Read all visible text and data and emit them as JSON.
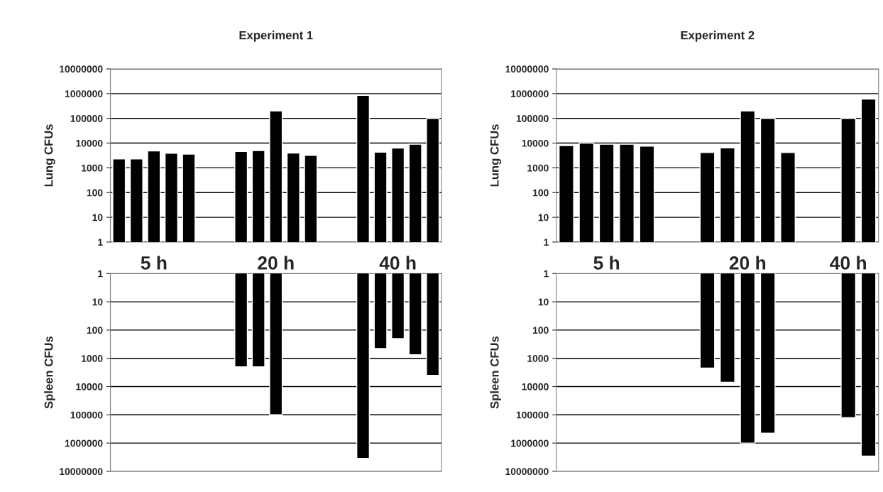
{
  "chart_data": [
    {
      "type": "bar",
      "title": "Experiment 1",
      "ylabel": "Lung CFUs",
      "log": "y",
      "grid": "y",
      "tick_labels": "xy",
      "categories": [
        null,
        null,
        "5 h",
        null,
        null,
        null,
        null,
        null,
        null,
        "20 h",
        null,
        null,
        null,
        null,
        null,
        null,
        "40 h",
        null,
        null
      ],
      "series": [
        {
          "color": "#000000",
          "values": [
            2300,
            2300,
            4800,
            3900,
            3600,
            null,
            null,
            4600,
            5000,
            200000,
            4000,
            3200,
            null,
            null,
            850000,
            4300,
            6300,
            9000,
            100000
          ]
        }
      ],
      "ylim": [
        1,
        10000000
      ],
      "yticks": [
        1,
        10,
        100,
        1000,
        10000,
        100000,
        1000000,
        10000000
      ]
    },
    {
      "type": "bar",
      "ylabel": "Spleen CFUs",
      "log": "y",
      "grid": "y",
      "tick_labels": "y",
      "categories": [
        null,
        null,
        null,
        null,
        null,
        null,
        null,
        null,
        null,
        null,
        null,
        null,
        null,
        null,
        null,
        null,
        null,
        null,
        null
      ],
      "series": [
        {
          "color": "#000000",
          "values": [
            null,
            null,
            null,
            null,
            null,
            null,
            null,
            2000,
            2000,
            100000,
            null,
            null,
            null,
            null,
            3500000,
            450,
            200,
            750,
            4000
          ]
        }
      ],
      "ylim": [
        10000000,
        1
      ],
      "yticks": [
        1,
        10,
        100,
        1000,
        10000,
        100000,
        1000000,
        10000000
      ]
    },
    {
      "type": "bar",
      "title": "Experiment 2",
      "ylabel": "Lung CFUs",
      "log": "y",
      "grid": "y",
      "tick_labels": "xy",
      "categories": [
        null,
        null,
        "5 h",
        null,
        null,
        null,
        null,
        null,
        null,
        "20 h",
        null,
        null,
        null,
        null,
        "40 h",
        null
      ],
      "series": [
        {
          "color": "#000000",
          "values": [
            8000,
            10000,
            9000,
            9000,
            7500,
            null,
            null,
            4200,
            6400,
            200000,
            100000,
            4200,
            null,
            null,
            100000,
            600000
          ]
        }
      ],
      "ylim": [
        1,
        10000000
      ],
      "yticks": [
        1,
        10,
        100,
        1000,
        10000,
        100000,
        1000000,
        10000000
      ]
    },
    {
      "type": "bar",
      "ylabel": "Spleen CFUs",
      "log": "y",
      "grid": "y",
      "tick_labels": "y",
      "categories": [
        null,
        null,
        null,
        null,
        null,
        null,
        null,
        null,
        null,
        null,
        null,
        null,
        null,
        null,
        null,
        null
      ],
      "series": [
        {
          "color": "#000000",
          "values": [
            null,
            null,
            null,
            null,
            null,
            null,
            null,
            2200,
            7000,
            1000000,
            450000,
            null,
            null,
            null,
            125000,
            2900000
          ]
        }
      ],
      "ylim": [
        10000000,
        1
      ],
      "yticks": [
        1,
        10,
        100,
        1000,
        10000,
        100000,
        1000000,
        10000000
      ]
    }
  ]
}
